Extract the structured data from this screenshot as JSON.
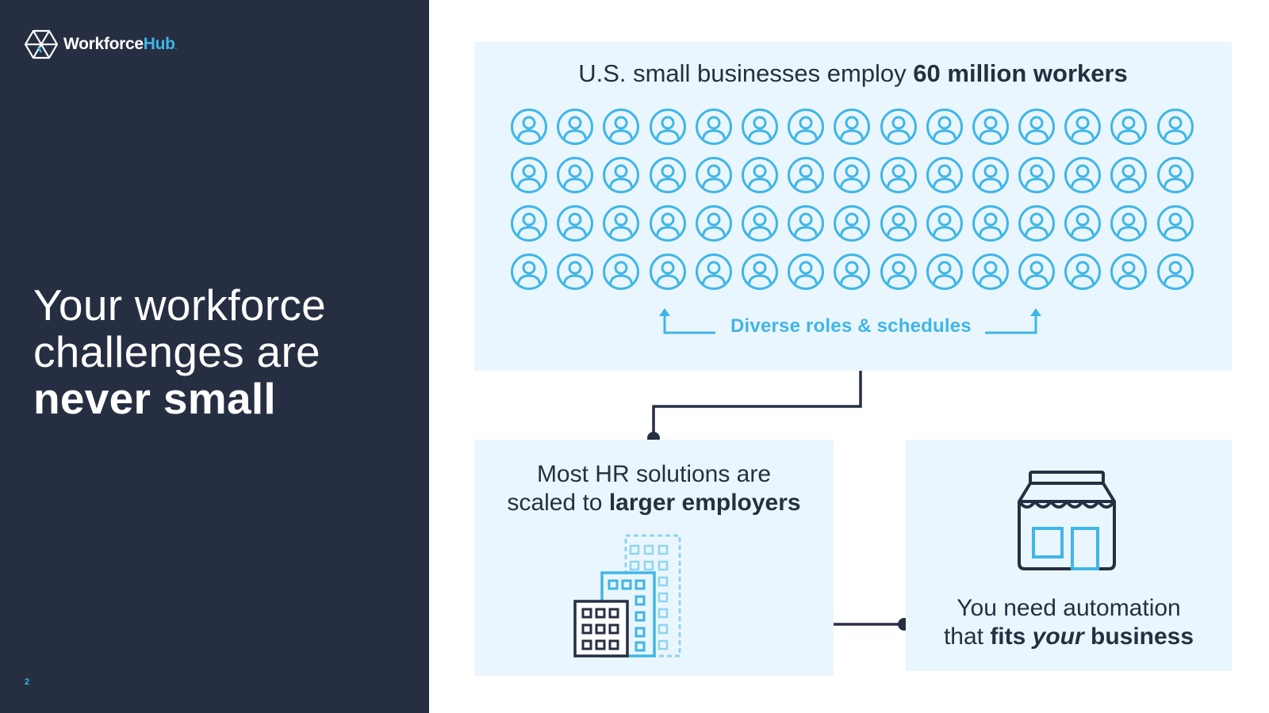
{
  "brand": {
    "name_primary": "Workforce",
    "name_accent": "Hub",
    "name_suffix": ".",
    "accent_color": "#3fb6e8",
    "dark_color": "#262f42"
  },
  "headline": {
    "line1": "Your workforce",
    "line2": "challenges are",
    "line3_bold": "never small"
  },
  "page_number": "2",
  "top_card": {
    "title_regular": "U.S. small businesses employ ",
    "title_bold": "60 million workers",
    "icon_name": "person-circle-icon",
    "icon_count": 60,
    "annotation": "Diverse roles & schedules"
  },
  "left_card": {
    "line1": "Most HR solutions are",
    "line2_regular": "scaled to ",
    "line2_bold": "larger employers",
    "icon_name": "office-buildings-icon"
  },
  "right_card": {
    "line1": "You need automation",
    "line2_regular": "that ",
    "line2_bold": "fits ",
    "line2_bold_italic": "your",
    "line2_bold_end": " business",
    "icon_name": "storefront-icon"
  }
}
